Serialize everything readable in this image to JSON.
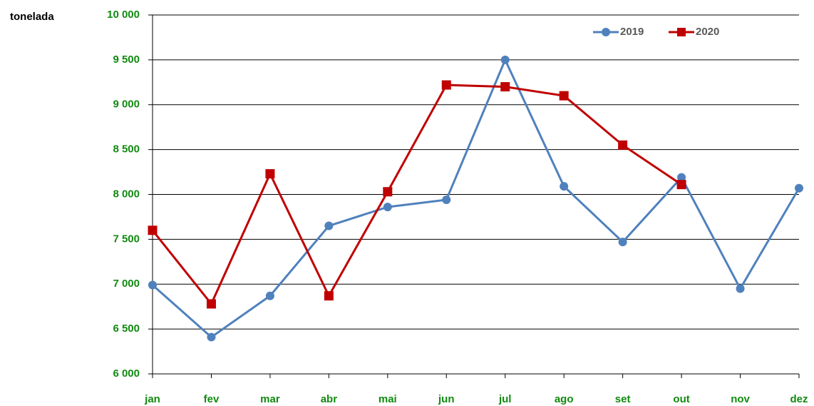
{
  "chart_data": {
    "type": "line",
    "y_label": "tonelada",
    "categories": [
      "jan",
      "fev",
      "mar",
      "abr",
      "mai",
      "jun",
      "jul",
      "ago",
      "set",
      "out",
      "nov",
      "dez"
    ],
    "series": [
      {
        "name": "2019",
        "color": "#4f81bd",
        "marker": "circle",
        "values": [
          6990,
          6410,
          6870,
          7650,
          7860,
          7940,
          9500,
          8090,
          7470,
          8190,
          6950,
          8070
        ]
      },
      {
        "name": "2020",
        "color": "#c00000",
        "marker": "square",
        "values": [
          7600,
          6780,
          8230,
          6870,
          8030,
          9220,
          9200,
          9100,
          8550,
          8110,
          null,
          null
        ]
      }
    ],
    "ylim": [
      6000,
      10000
    ],
    "yticks": [
      {
        "value": 6000,
        "label": "6 000"
      },
      {
        "value": 6500,
        "label": "6 500"
      },
      {
        "value": 7000,
        "label": "7 000"
      },
      {
        "value": 7500,
        "label": "7 500"
      },
      {
        "value": 8000,
        "label": "8 000"
      },
      {
        "value": 8500,
        "label": "8 500"
      },
      {
        "value": 9000,
        "label": "9 000"
      },
      {
        "value": 9500,
        "label": "9 500"
      },
      {
        "value": 10000,
        "label": "10 000"
      }
    ],
    "grid": true,
    "legend": "top-right"
  }
}
